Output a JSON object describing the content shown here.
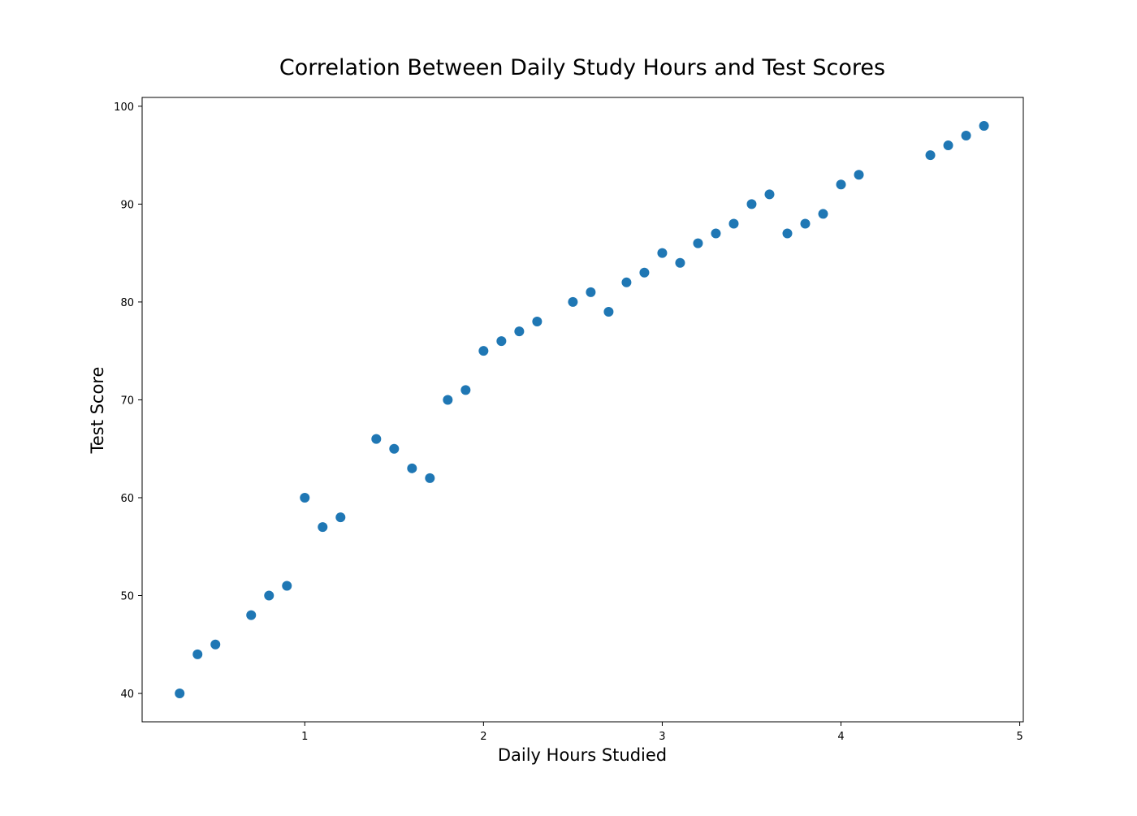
{
  "chart_data": {
    "type": "scatter",
    "title": "Correlation Between Daily Study Hours and Test Scores",
    "xlabel": "Daily Hours Studied",
    "ylabel": "Test Score",
    "xlim": [
      0.09,
      5.02
    ],
    "ylim": [
      37.1,
      100.9
    ],
    "xticks": [
      1,
      2,
      3,
      4,
      5
    ],
    "yticks": [
      40,
      50,
      60,
      70,
      80,
      90,
      100
    ],
    "grid": false,
    "marker_color": "#1f77b4",
    "points": [
      {
        "x": 0.3,
        "y": 40
      },
      {
        "x": 0.4,
        "y": 44
      },
      {
        "x": 0.5,
        "y": 45
      },
      {
        "x": 0.7,
        "y": 48
      },
      {
        "x": 0.8,
        "y": 50
      },
      {
        "x": 0.9,
        "y": 51
      },
      {
        "x": 1.0,
        "y": 60
      },
      {
        "x": 1.1,
        "y": 57
      },
      {
        "x": 1.2,
        "y": 58
      },
      {
        "x": 1.4,
        "y": 66
      },
      {
        "x": 1.5,
        "y": 65
      },
      {
        "x": 1.6,
        "y": 63
      },
      {
        "x": 1.7,
        "y": 62
      },
      {
        "x": 1.8,
        "y": 70
      },
      {
        "x": 1.9,
        "y": 71
      },
      {
        "x": 2.0,
        "y": 75
      },
      {
        "x": 2.1,
        "y": 76
      },
      {
        "x": 2.2,
        "y": 77
      },
      {
        "x": 2.3,
        "y": 78
      },
      {
        "x": 2.5,
        "y": 80
      },
      {
        "x": 2.6,
        "y": 81
      },
      {
        "x": 2.7,
        "y": 79
      },
      {
        "x": 2.8,
        "y": 82
      },
      {
        "x": 2.9,
        "y": 83
      },
      {
        "x": 3.0,
        "y": 85
      },
      {
        "x": 3.1,
        "y": 84
      },
      {
        "x": 3.2,
        "y": 86
      },
      {
        "x": 3.3,
        "y": 87
      },
      {
        "x": 3.4,
        "y": 88
      },
      {
        "x": 3.5,
        "y": 90
      },
      {
        "x": 3.6,
        "y": 91
      },
      {
        "x": 3.7,
        "y": 87
      },
      {
        "x": 3.8,
        "y": 88
      },
      {
        "x": 3.9,
        "y": 89
      },
      {
        "x": 4.0,
        "y": 92
      },
      {
        "x": 4.1,
        "y": 93
      },
      {
        "x": 4.5,
        "y": 95
      },
      {
        "x": 4.6,
        "y": 96
      },
      {
        "x": 4.7,
        "y": 97
      },
      {
        "x": 4.8,
        "y": 98
      }
    ]
  }
}
